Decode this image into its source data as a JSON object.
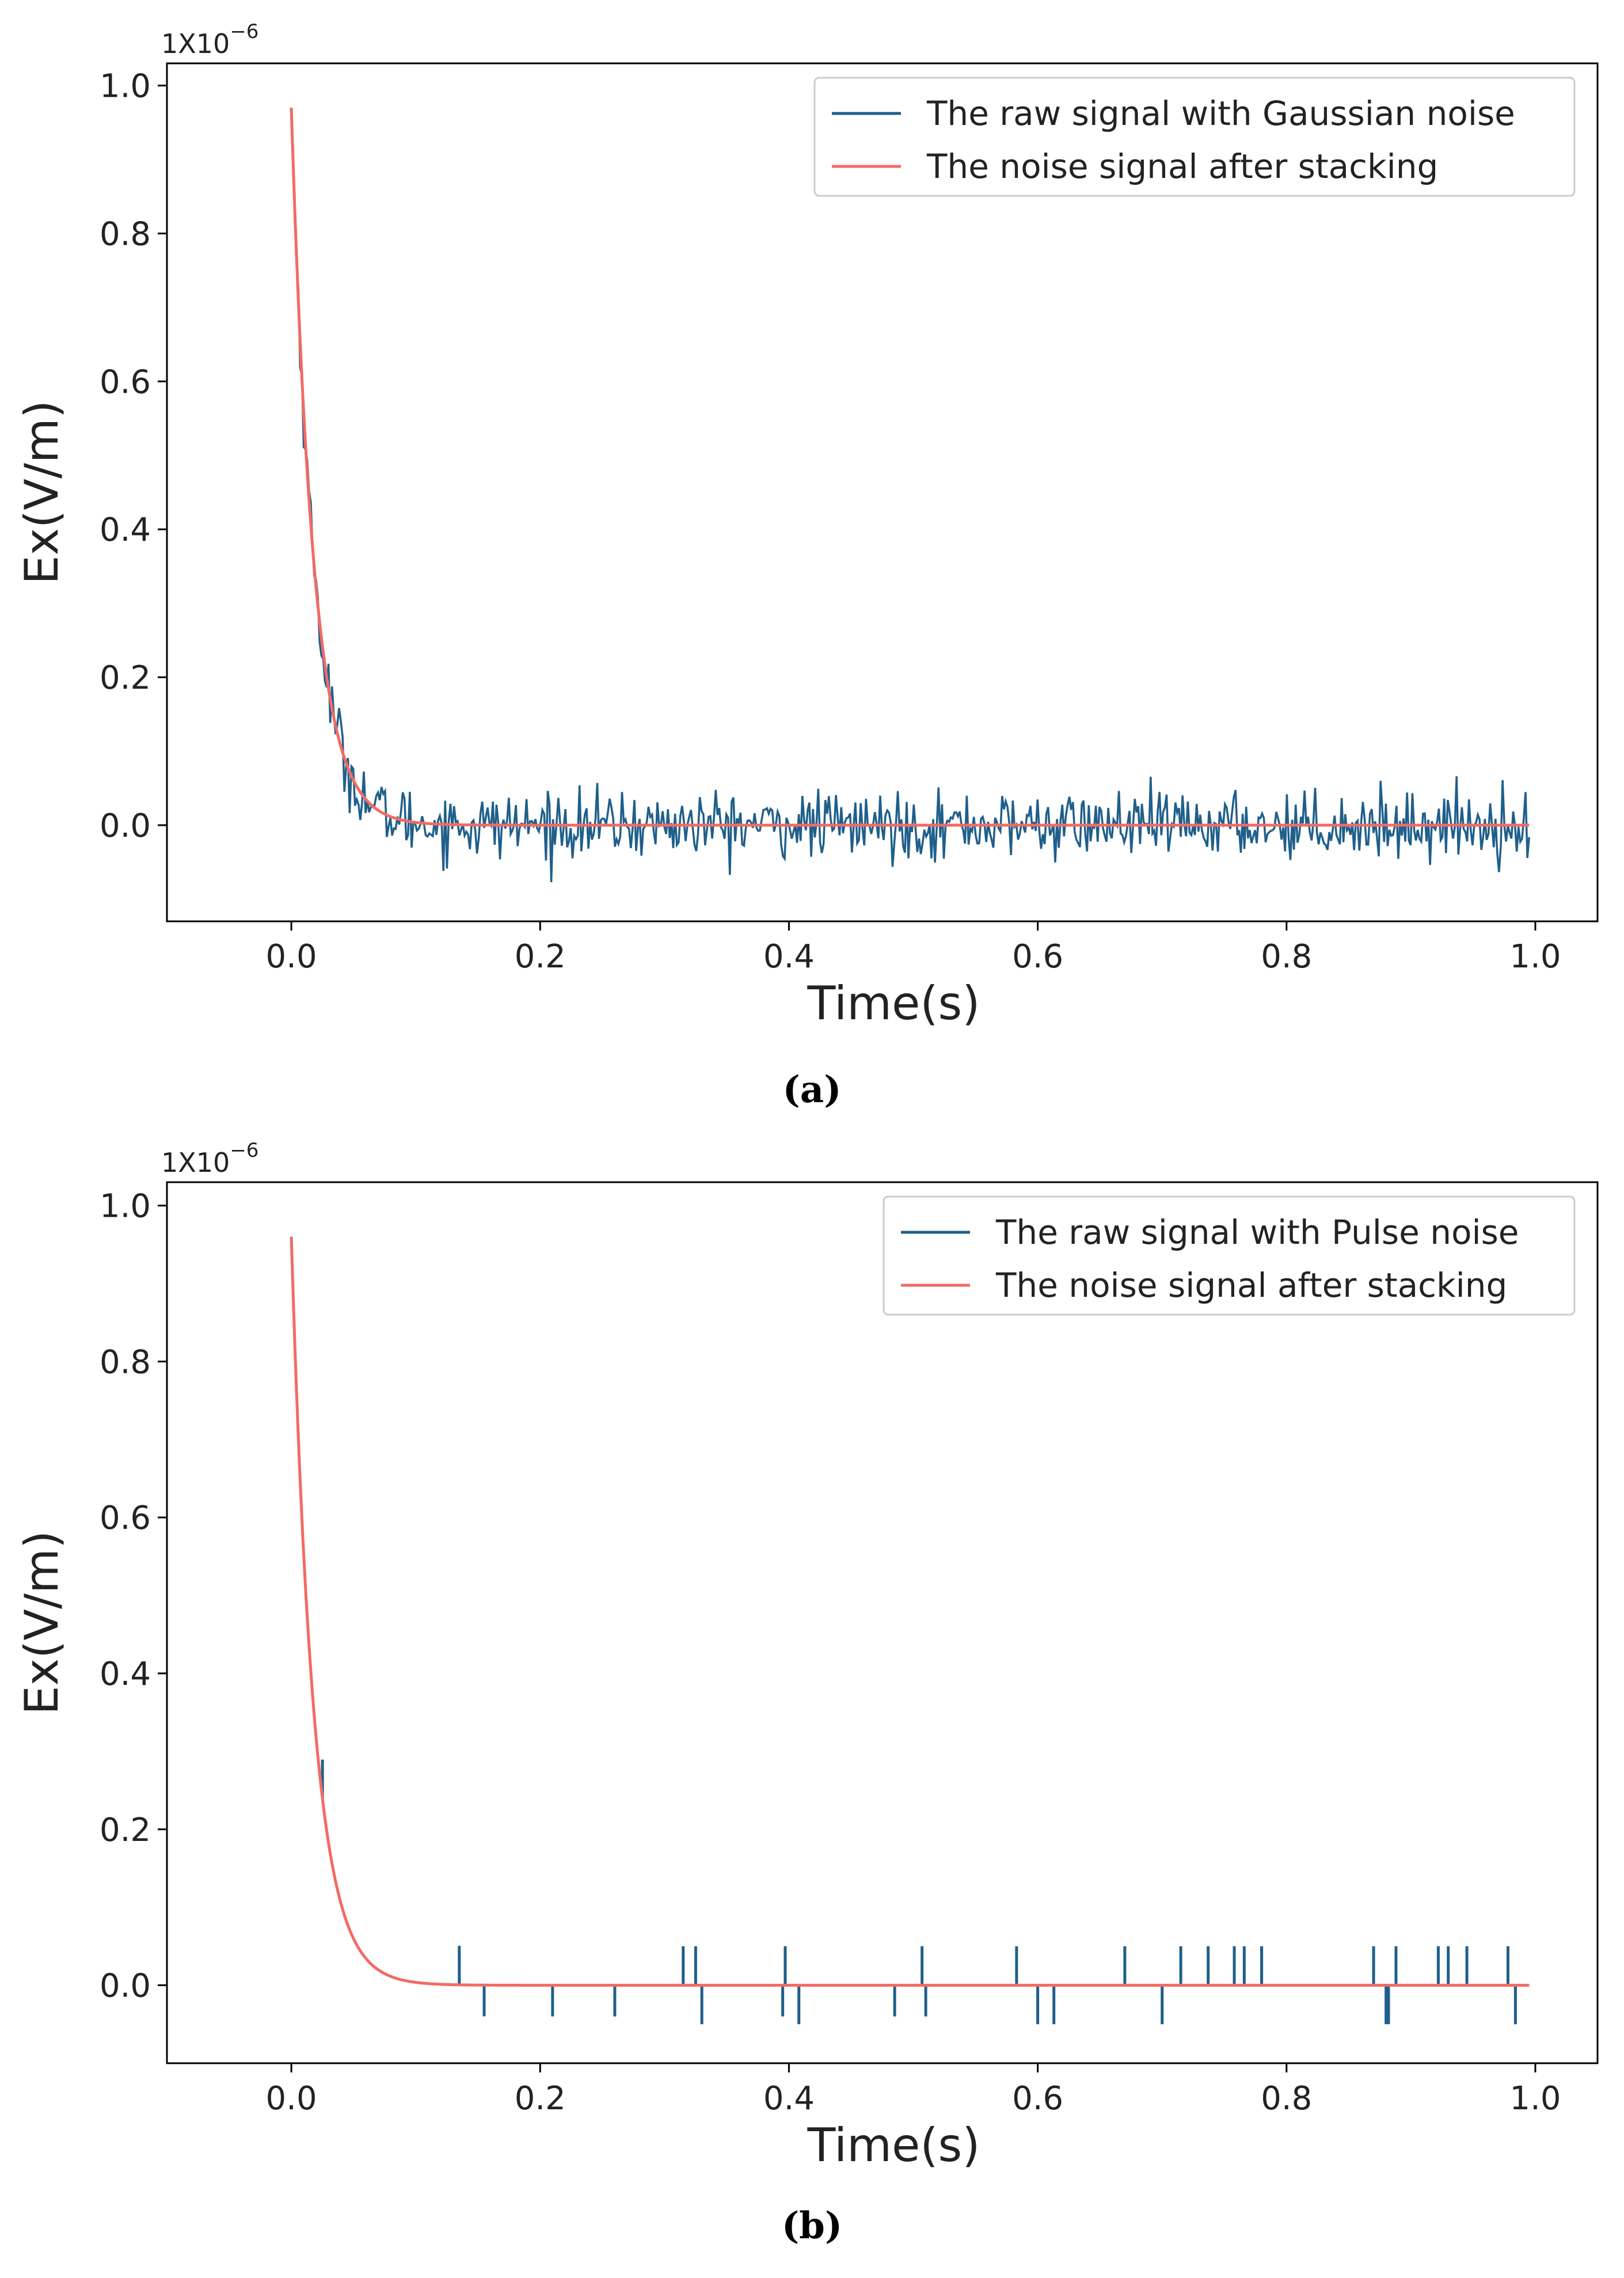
{
  "figure": {
    "caption_a": "(a)",
    "caption_b": "(b)"
  },
  "colors": {
    "raw": "#1f5f8b",
    "stacked": "#f26b64",
    "axis": "#000000"
  },
  "chart_data": [
    {
      "id": "a",
      "type": "line",
      "multiplier_label_base": "1X10",
      "multiplier_label_exp": "−6",
      "xlabel": "Time(s)",
      "ylabel": "Ex(V/m)",
      "xlim": [
        -0.1,
        1.05
      ],
      "ylim": [
        -0.13,
        1.03
      ],
      "xticks": [
        0.0,
        0.2,
        0.4,
        0.6,
        0.8,
        1.0
      ],
      "xtick_labels": [
        "0.0",
        "0.2",
        "0.4",
        "0.6",
        "0.8",
        "1.0"
      ],
      "yticks": [
        0.0,
        0.2,
        0.4,
        0.6,
        0.8,
        1.0
      ],
      "ytick_labels": [
        "0.0",
        "0.2",
        "0.4",
        "0.6",
        "0.8",
        "1.0"
      ],
      "legend_position": "top-right",
      "series": [
        {
          "name": "The raw signal with Gaussian noise",
          "kind": "gaussian_noise",
          "model": "0.97 * exp(-t/0.018) + noise",
          "t_range": [
            0.0,
            0.995
          ],
          "noise_std": 0.022,
          "peak": 0.97
        },
        {
          "name": "The noise signal after stacking",
          "kind": "clean_decay",
          "model": "0.97 * exp(-t/0.018)",
          "t_range": [
            0.0,
            0.995
          ],
          "peak": 0.97
        }
      ]
    },
    {
      "id": "b",
      "type": "line",
      "multiplier_label_base": "1X10",
      "multiplier_label_exp": "−6",
      "xlabel": "Time(s)",
      "ylabel": "Ex(V/m)",
      "xlim": [
        -0.1,
        1.05
      ],
      "ylim": [
        -0.1,
        1.03
      ],
      "xticks": [
        0.0,
        0.2,
        0.4,
        0.6,
        0.8,
        1.0
      ],
      "xtick_labels": [
        "0.0",
        "0.2",
        "0.4",
        "0.6",
        "0.8",
        "1.0"
      ],
      "yticks": [
        0.0,
        0.2,
        0.4,
        0.6,
        0.8,
        1.0
      ],
      "ytick_labels": [
        "0.0",
        "0.2",
        "0.4",
        "0.6",
        "0.8",
        "1.0"
      ],
      "legend_position": "top-right",
      "series": [
        {
          "name": "The raw signal with Pulse noise",
          "kind": "pulse_noise",
          "model": "0.96 * exp(-t/0.018) + pulses",
          "t_range": [
            0.0,
            0.995
          ],
          "peak": 0.96,
          "pulses": [
            [
              0.025,
              0.05
            ],
            [
              0.135,
              0.05
            ],
            [
              0.155,
              -0.04
            ],
            [
              0.21,
              -0.04
            ],
            [
              0.26,
              -0.04
            ],
            [
              0.315,
              0.05
            ],
            [
              0.325,
              0.05
            ],
            [
              0.33,
              -0.05
            ],
            [
              0.395,
              -0.04
            ],
            [
              0.397,
              0.05
            ],
            [
              0.408,
              -0.05
            ],
            [
              0.485,
              -0.04
            ],
            [
              0.507,
              0.05
            ],
            [
              0.51,
              -0.04
            ],
            [
              0.583,
              0.05
            ],
            [
              0.6,
              -0.05
            ],
            [
              0.613,
              -0.05
            ],
            [
              0.67,
              0.05
            ],
            [
              0.7,
              -0.05
            ],
            [
              0.715,
              0.05
            ],
            [
              0.737,
              0.05
            ],
            [
              0.758,
              0.05
            ],
            [
              0.766,
              0.05
            ],
            [
              0.78,
              0.05
            ],
            [
              0.87,
              0.05
            ],
            [
              0.88,
              -0.05
            ],
            [
              0.882,
              -0.05
            ],
            [
              0.888,
              0.05
            ],
            [
              0.922,
              0.05
            ],
            [
              0.93,
              0.05
            ],
            [
              0.945,
              0.05
            ],
            [
              0.978,
              0.05
            ],
            [
              0.984,
              -0.05
            ]
          ]
        },
        {
          "name": "The noise signal after stacking",
          "kind": "clean_decay",
          "model": "0.96 * exp(-t/0.018)",
          "t_range": [
            0.0,
            0.995
          ],
          "peak": 0.96
        }
      ]
    }
  ]
}
